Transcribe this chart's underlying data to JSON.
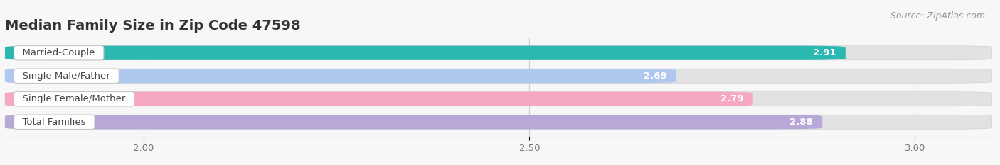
{
  "title": "Median Family Size in Zip Code 47598",
  "source": "Source: ZipAtlas.com",
  "categories": [
    "Married-Couple",
    "Single Male/Father",
    "Single Female/Mother",
    "Total Families"
  ],
  "values": [
    2.91,
    2.69,
    2.79,
    2.88
  ],
  "bar_colors": [
    "#2ab8b0",
    "#b0c8ee",
    "#f5a8c0",
    "#b8a8d8"
  ],
  "xlim_left": 1.82,
  "xlim_right": 3.1,
  "xticks": [
    2.0,
    2.5,
    3.0
  ],
  "background_color": "#f7f7f7",
  "bar_bg_color": "#e2e2e2",
  "title_fontsize": 14,
  "label_fontsize": 9.5,
  "value_fontsize": 9.5,
  "source_fontsize": 9,
  "bar_height": 0.62,
  "bar_gap": 0.38
}
